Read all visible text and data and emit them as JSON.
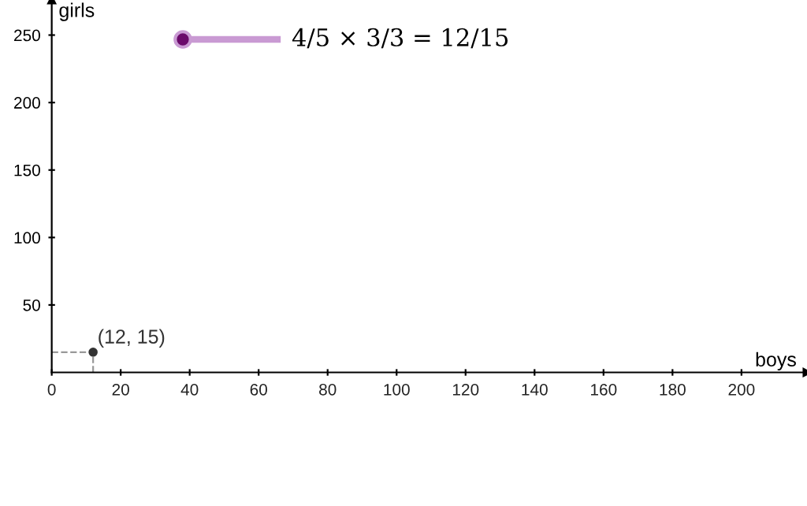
{
  "chart_data": {
    "type": "scatter",
    "xlabel": "boys",
    "ylabel": "girls",
    "series": [
      {
        "color": "#333333",
        "x": [
          12
        ],
        "values": [
          15
        ]
      }
    ],
    "xlim": [
      -15,
      219
    ],
    "ylim": [
      -99,
      276
    ],
    "xticks": [
      0,
      20,
      40,
      60,
      80,
      100,
      120,
      140,
      160,
      180,
      200
    ],
    "yticks": [
      50,
      100,
      150,
      200,
      250
    ],
    "grid": false,
    "marker": "circle",
    "annotations": [
      "4/5 × 3/3 = 12/15",
      {
        "text": "(12, 15)",
        "x": 12,
        "y": 15
      }
    ]
  }
}
